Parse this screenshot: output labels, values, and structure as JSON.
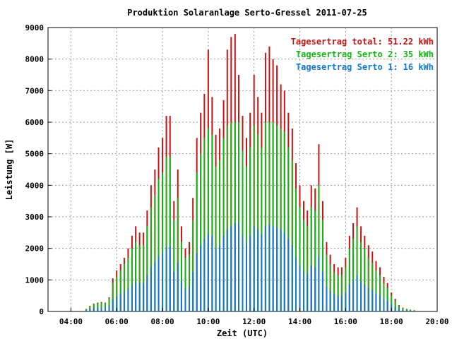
{
  "chart_data": {
    "type": "bar",
    "title": "Produktion Solaranlage Serto-Gressel 2011-07-25",
    "xlabel": "Zeit (UTC)",
    "ylabel": "Leistung [W]",
    "x_unit": "hours UTC",
    "xlim": [
      3.0,
      20.0
    ],
    "ylim": [
      0,
      9000
    ],
    "x_ticks": [
      {
        "value": 4,
        "label": "04:00"
      },
      {
        "value": 6,
        "label": "06:00"
      },
      {
        "value": 8,
        "label": "08:00"
      },
      {
        "value": 10,
        "label": "10:00"
      },
      {
        "value": 12,
        "label": "12:00"
      },
      {
        "value": 14,
        "label": "14:00"
      },
      {
        "value": 16,
        "label": "16:00"
      },
      {
        "value": 18,
        "label": "18:00"
      },
      {
        "value": 20,
        "label": "20:00"
      }
    ],
    "y_ticks": [
      0,
      1000,
      2000,
      3000,
      4000,
      5000,
      6000,
      7000,
      8000,
      9000
    ],
    "grid": true,
    "legend_position": "top-right",
    "series": [
      {
        "name": "Tagesertrag total: 51.22 kWh",
        "color": "#c81414",
        "x": [
          4.67,
          4.83,
          5.0,
          5.17,
          5.33,
          5.5,
          5.67,
          5.83,
          6.0,
          6.17,
          6.33,
          6.5,
          6.67,
          6.83,
          7.0,
          7.17,
          7.33,
          7.5,
          7.67,
          7.83,
          8.0,
          8.17,
          8.33,
          8.5,
          8.67,
          8.83,
          9.0,
          9.17,
          9.33,
          9.5,
          9.67,
          9.83,
          10.0,
          10.17,
          10.33,
          10.5,
          10.67,
          10.83,
          11.0,
          11.17,
          11.33,
          11.5,
          11.67,
          11.83,
          12.0,
          12.17,
          12.33,
          12.5,
          12.67,
          12.83,
          13.0,
          13.17,
          13.33,
          13.5,
          13.67,
          13.83,
          14.0,
          14.17,
          14.33,
          14.5,
          14.67,
          14.83,
          15.0,
          15.17,
          15.33,
          15.5,
          15.67,
          15.83,
          16.0,
          16.17,
          16.33,
          16.5,
          16.67,
          16.83,
          17.0,
          17.17,
          17.33,
          17.5,
          17.67,
          17.83,
          18.0,
          18.17,
          18.33,
          18.5,
          18.67,
          18.83,
          19.0
        ],
        "values": [
          80,
          180,
          250,
          280,
          300,
          280,
          450,
          1050,
          1300,
          1500,
          1700,
          2000,
          2400,
          2700,
          2500,
          2500,
          3200,
          4000,
          4500,
          5200,
          5500,
          6200,
          6200,
          3500,
          4500,
          2700,
          2000,
          2200,
          3600,
          5500,
          6300,
          6900,
          8300,
          6800,
          5600,
          5800,
          6700,
          8300,
          8700,
          8800,
          7500,
          6200,
          5500,
          6300,
          7500,
          6800,
          6300,
          8200,
          8400,
          8000,
          7800,
          7200,
          7000,
          6300,
          5800,
          4700,
          4000,
          3500,
          3200,
          4000,
          3900,
          5300,
          3500,
          2200,
          1800,
          1500,
          1400,
          1400,
          1700,
          2400,
          2800,
          3300,
          2700,
          2400,
          2100,
          1900,
          1600,
          1400,
          1100,
          900,
          600,
          400,
          200,
          120,
          80,
          60,
          40
        ]
      },
      {
        "name": "Tagesertrag Serto 2: 35 kWh",
        "color": "#14b414",
        "x": [
          4.67,
          4.83,
          5.0,
          5.17,
          5.33,
          5.5,
          5.67,
          5.83,
          6.0,
          6.17,
          6.33,
          6.5,
          6.67,
          6.83,
          7.0,
          7.17,
          7.33,
          7.5,
          7.67,
          7.83,
          8.0,
          8.17,
          8.33,
          8.5,
          8.67,
          8.83,
          9.0,
          9.17,
          9.33,
          9.5,
          9.67,
          9.83,
          10.0,
          10.17,
          10.33,
          10.5,
          10.67,
          10.83,
          11.0,
          11.17,
          11.33,
          11.5,
          11.67,
          11.83,
          12.0,
          12.17,
          12.33,
          12.5,
          12.67,
          12.83,
          13.0,
          13.17,
          13.33,
          13.5,
          13.67,
          13.83,
          14.0,
          14.17,
          14.33,
          14.5,
          14.67,
          14.83,
          15.0,
          15.17,
          15.33,
          15.5,
          15.67,
          15.83,
          16.0,
          16.17,
          16.33,
          16.5,
          16.67,
          16.83,
          17.0,
          17.17,
          17.33,
          17.5,
          17.67,
          17.83,
          18.0,
          18.17,
          18.33,
          18.5,
          18.67,
          18.83,
          19.0
        ],
        "values": [
          70,
          160,
          230,
          250,
          270,
          260,
          420,
          900,
          1100,
          1300,
          1500,
          1700,
          2000,
          2200,
          2100,
          2100,
          2700,
          3300,
          3700,
          4200,
          4400,
          4900,
          4900,
          2900,
          3600,
          2200,
          1700,
          1800,
          2900,
          4400,
          5000,
          5500,
          5800,
          5600,
          4600,
          4800,
          5500,
          5900,
          6000,
          6000,
          6000,
          5100,
          4600,
          5200,
          5900,
          5600,
          5200,
          6000,
          6000,
          6000,
          5900,
          5800,
          5700,
          5200,
          4800,
          3900,
          3300,
          2900,
          2700,
          3300,
          3200,
          4000,
          2900,
          1800,
          1500,
          1250,
          1150,
          1150,
          1400,
          2000,
          2300,
          2700,
          2200,
          2000,
          1700,
          1550,
          1300,
          1150,
          900,
          750,
          500,
          330,
          170,
          100,
          70,
          50,
          35
        ]
      },
      {
        "name": "Tagesertrag Serto 1: 16 kWh",
        "color": "#1478d2",
        "x": [
          4.67,
          4.83,
          5.0,
          5.17,
          5.33,
          5.5,
          5.67,
          5.83,
          6.0,
          6.17,
          6.33,
          6.5,
          6.67,
          6.83,
          7.0,
          7.17,
          7.33,
          7.5,
          7.67,
          7.83,
          8.0,
          8.17,
          8.33,
          8.5,
          8.67,
          8.83,
          9.0,
          9.17,
          9.33,
          9.5,
          9.67,
          9.83,
          10.0,
          10.17,
          10.33,
          10.5,
          10.67,
          10.83,
          11.0,
          11.17,
          11.33,
          11.5,
          11.67,
          11.83,
          12.0,
          12.17,
          12.33,
          12.5,
          12.67,
          12.83,
          13.0,
          13.17,
          13.33,
          13.5,
          13.67,
          13.83,
          14.0,
          14.17,
          14.33,
          14.5,
          14.67,
          14.83,
          15.0,
          15.17,
          15.33,
          15.5,
          15.67,
          15.83,
          16.0,
          16.17,
          16.33,
          16.5,
          16.67,
          16.83,
          17.0,
          17.17,
          17.33,
          17.5,
          17.67,
          17.83,
          18.0,
          18.17,
          18.33,
          18.5,
          18.67,
          18.83,
          19.0
        ],
        "values": [
          30,
          70,
          100,
          110,
          120,
          110,
          180,
          380,
          470,
          550,
          640,
          720,
          850,
          940,
          900,
          900,
          1150,
          1400,
          1550,
          1750,
          1850,
          2050,
          2050,
          1250,
          1550,
          950,
          720,
          780,
          1250,
          1850,
          2100,
          2300,
          2450,
          2400,
          2000,
          2100,
          2400,
          2600,
          2700,
          2800,
          2800,
          2400,
          2200,
          2400,
          2700,
          2600,
          2450,
          2700,
          2750,
          2700,
          2650,
          2600,
          2500,
          2300,
          2100,
          1700,
          1450,
          1250,
          1200,
          1450,
          1400,
          1750,
          1250,
          800,
          650,
          550,
          500,
          500,
          600,
          850,
          1000,
          1150,
          950,
          850,
          750,
          680,
          560,
          500,
          400,
          330,
          220,
          150,
          80,
          45,
          30,
          22,
          15
        ]
      }
    ]
  }
}
